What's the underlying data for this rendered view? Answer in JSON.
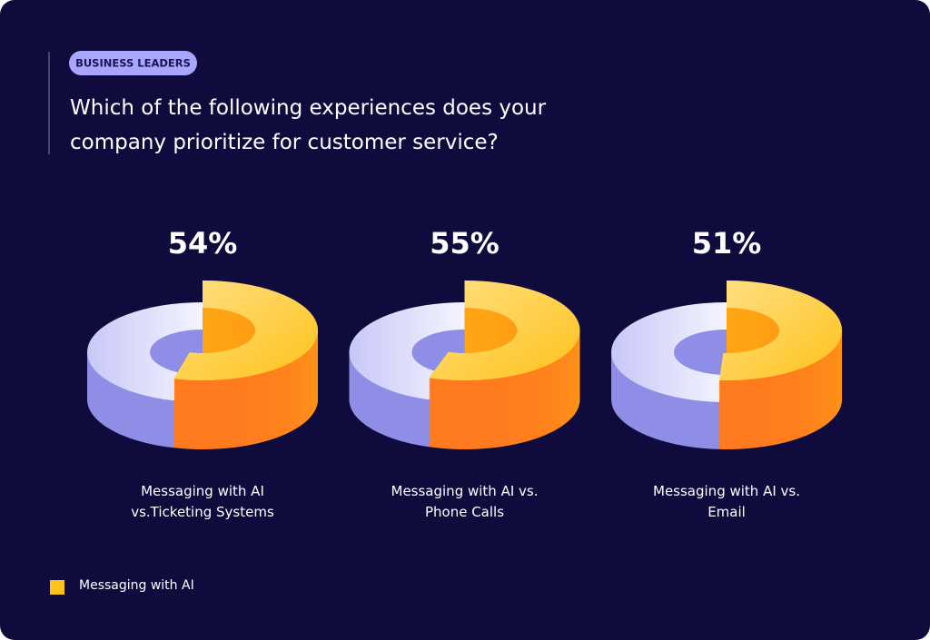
{
  "chart_data": {
    "type": "donut",
    "badge": "BUSINESS LEADERS",
    "title": "Which of the following experiences does your company prioritize for customer service?",
    "categories": [
      "Messaging with AI vs.Ticketing Systems",
      "Messaging with AI vs. Phone Calls",
      "Messaging with AI vs. Email"
    ],
    "series": [
      {
        "name": "Messaging with AI",
        "color": "#ffc21a",
        "values": [
          54,
          55,
          51
        ],
        "value_labels": [
          "54%",
          "55%",
          "51%"
        ]
      }
    ],
    "legend": "bottom-left"
  }
}
